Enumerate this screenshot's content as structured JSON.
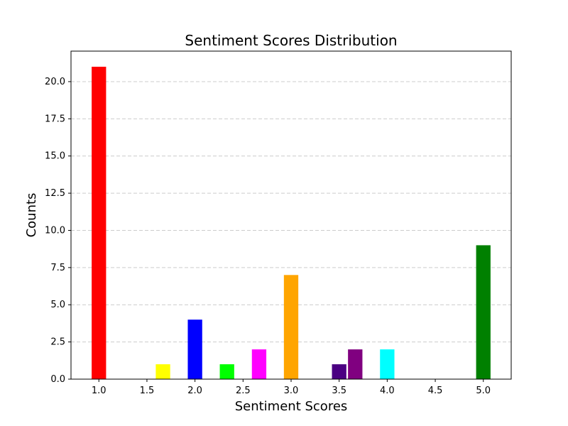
{
  "chart_data": {
    "type": "bar",
    "title": "Sentiment Scores Distribution",
    "xlabel": "Sentiment Scores",
    "ylabel": "Counts",
    "xlim": [
      0.71,
      5.29
    ],
    "ylim": [
      0,
      22.05
    ],
    "xticks": [
      1.0,
      1.5,
      2.0,
      2.5,
      3.0,
      3.5,
      4.0,
      4.5,
      5.0
    ],
    "yticks": [
      0.0,
      2.5,
      5.0,
      7.5,
      10.0,
      12.5,
      15.0,
      17.5,
      20.0
    ],
    "grid": "y-dashed",
    "bar_width": 0.15,
    "bars": [
      {
        "x": 1.0,
        "value": 21,
        "color": "#ff0000"
      },
      {
        "x": 1.667,
        "value": 1,
        "color": "#ffff00"
      },
      {
        "x": 2.0,
        "value": 4,
        "color": "#0000ff"
      },
      {
        "x": 2.333,
        "value": 1,
        "color": "#00ff00"
      },
      {
        "x": 2.667,
        "value": 2,
        "color": "#ff00ff"
      },
      {
        "x": 3.0,
        "value": 7,
        "color": "#ffa500"
      },
      {
        "x": 3.5,
        "value": 1,
        "color": "#4b0082"
      },
      {
        "x": 3.667,
        "value": 2,
        "color": "#800080"
      },
      {
        "x": 4.0,
        "value": 2,
        "color": "#00ffff"
      },
      {
        "x": 5.0,
        "value": 9,
        "color": "#008000"
      }
    ]
  }
}
